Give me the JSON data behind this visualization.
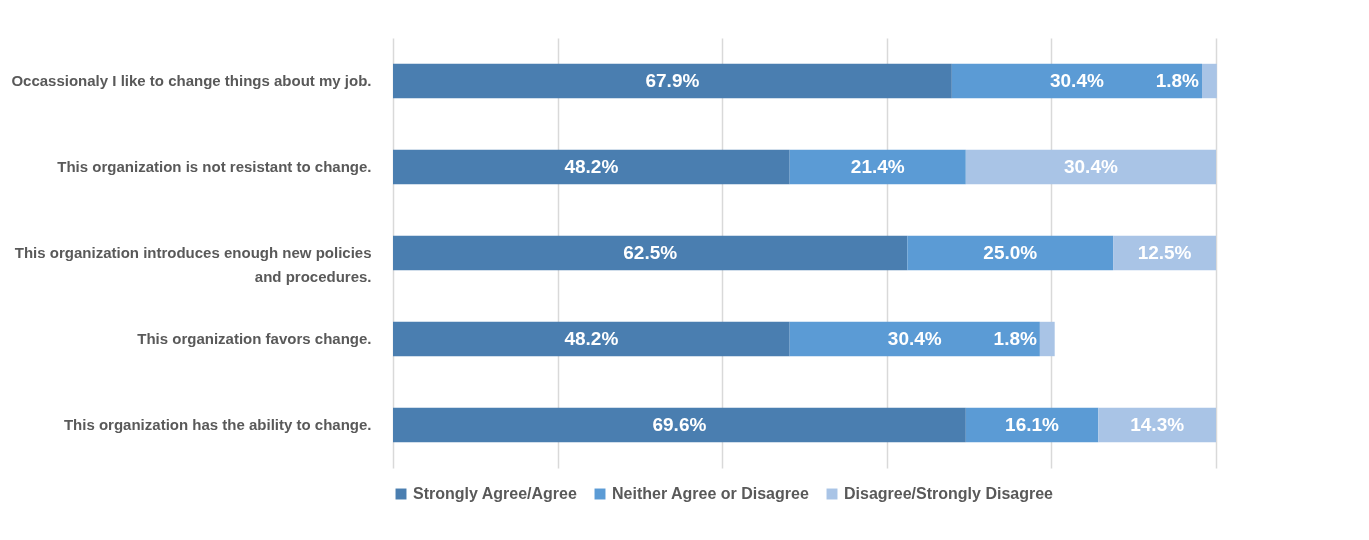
{
  "chart_data": {
    "type": "bar",
    "orientation": "horizontal",
    "stacked": true,
    "categories": [
      "Occassionaly I like to change things about my job.",
      "This organization is not resistant to change.",
      "This organization introduces enough new policies and procedures.",
      "This organization favors change.",
      "This organization has the ability to change."
    ],
    "series": [
      {
        "name": "Strongly Agree/Agree",
        "color": "#4a7eb0",
        "values": [
          67.9,
          48.2,
          62.5,
          48.2,
          69.6
        ],
        "value_labels": [
          "67.9%",
          "48.2%",
          "62.5%",
          "48.2%",
          "69.6%"
        ]
      },
      {
        "name": "Neither Agree or Disagree",
        "color": "#5b9bd5",
        "values": [
          30.4,
          21.4,
          25.0,
          30.4,
          16.1
        ],
        "value_labels": [
          "30.4%",
          "21.4%",
          "25.0%",
          "30.4%",
          "16.1%"
        ]
      },
      {
        "name": "Disagree/Strongly Disagree",
        "color": "#a9c4e6",
        "values": [
          1.8,
          30.4,
          12.5,
          1.8,
          14.3
        ],
        "value_labels": [
          "1.8%",
          "30.4%",
          "12.5%",
          "1.8%",
          "14.3%"
        ]
      }
    ],
    "xlim": [
      0,
      100
    ],
    "xticks": [
      {
        "value": 0,
        "label": null
      },
      {
        "value": 20,
        "label": null
      },
      {
        "value": 40,
        "label": null
      },
      {
        "value": 60,
        "label": null
      },
      {
        "value": 80,
        "label": null
      },
      {
        "value": 100,
        "label": null
      }
    ],
    "tick_labels": "y",
    "grid": "x",
    "legend": "bottom"
  }
}
